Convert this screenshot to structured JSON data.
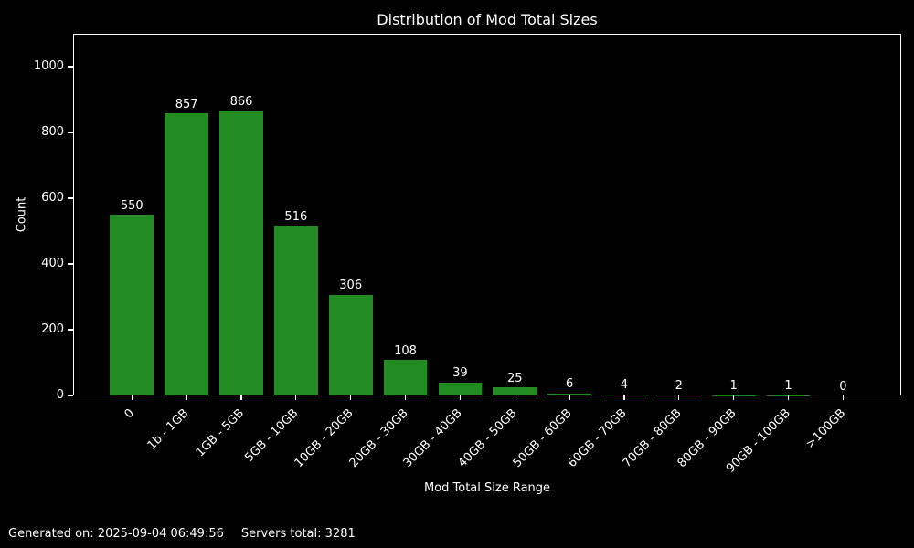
{
  "chart_data": {
    "type": "bar",
    "title": "Distribution of Mod Total Sizes",
    "xlabel": "Mod Total Size Range",
    "ylabel": "Count",
    "categories": [
      "0",
      "1b - 1GB",
      "1GB - 5GB",
      "5GB - 10GB",
      "10GB - 20GB",
      "20GB - 30GB",
      "30GB - 40GB",
      "40GB - 50GB",
      "50GB - 60GB",
      "60GB - 70GB",
      "70GB - 80GB",
      "80GB - 90GB",
      "90GB - 100GB",
      ">100GB"
    ],
    "values": [
      550,
      857,
      866,
      516,
      306,
      108,
      39,
      25,
      6,
      4,
      2,
      1,
      1,
      0
    ],
    "yticks": [
      0,
      200,
      400,
      600,
      800,
      1000
    ],
    "ytick_labels": [
      "0",
      "200",
      "400",
      "600",
      "800",
      "1000"
    ],
    "ylim": [
      0,
      1100
    ],
    "xtick_rotation": 45,
    "grid": false,
    "legend": null,
    "colors": {
      "bar": "#228b22",
      "background": "#000000",
      "text": "#ffffff",
      "axis": "#ffffff"
    }
  },
  "footer": {
    "generated": "Generated on: 2025-09-04 06:49:56",
    "servers_total": "Servers total: 3281"
  }
}
